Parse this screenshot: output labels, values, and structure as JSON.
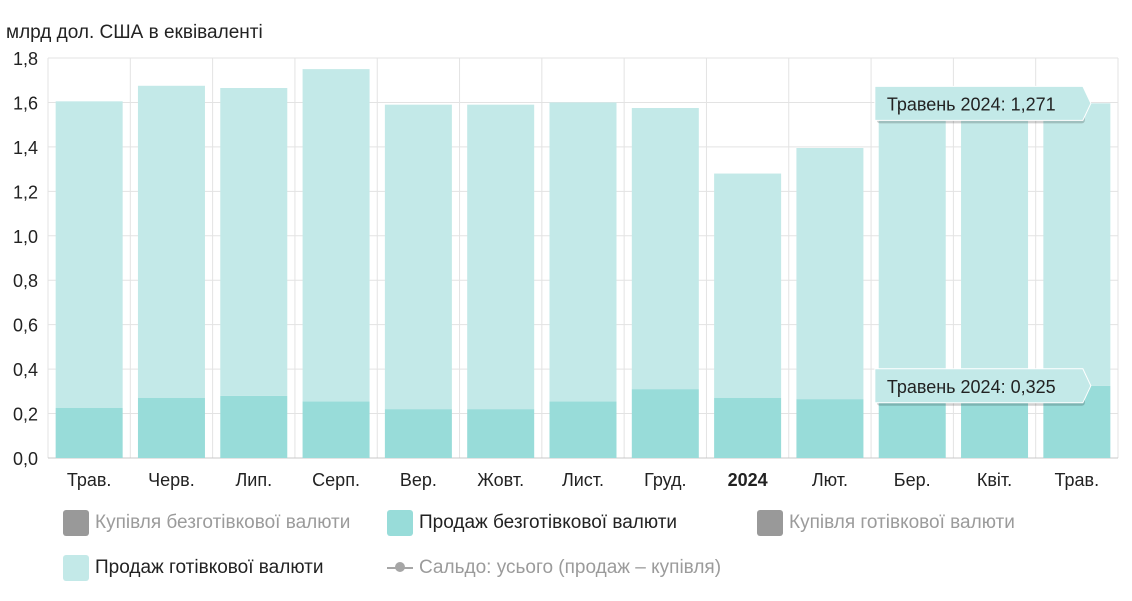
{
  "chart_data": {
    "type": "bar",
    "stacked": true,
    "ylabel": "млрд дол. США в еквіваленті",
    "ylim": [
      0,
      1.8
    ],
    "yticks": [
      "0,0",
      "0,2",
      "0,4",
      "0,6",
      "0,8",
      "1,0",
      "1,2",
      "1,4",
      "1,6",
      "1,8"
    ],
    "grid": true,
    "categories": [
      "Трав.",
      "Черв.",
      "Лип.",
      "Серп.",
      "Вер.",
      "Жовт.",
      "Лист.",
      "Груд.",
      "2024",
      "Лют.",
      "Бер.",
      "Квіт.",
      "Трав."
    ],
    "bold_categories": [
      "2024"
    ],
    "series": [
      {
        "name": "Продаж безготівкової валюти",
        "color": "#98dcd9",
        "values": [
          0.225,
          0.27,
          0.28,
          0.255,
          0.22,
          0.22,
          0.255,
          0.31,
          0.27,
          0.265,
          0.27,
          0.285,
          0.325
        ]
      },
      {
        "name": "Продаж готівкової валюти",
        "color": "#c3e9e8",
        "values": [
          1.38,
          1.405,
          1.385,
          1.495,
          1.37,
          1.37,
          1.345,
          1.265,
          1.01,
          1.13,
          1.3,
          1.305,
          1.271
        ]
      }
    ],
    "tooltips": [
      {
        "text": "Травень 2024: 1,271",
        "category_index": 12,
        "series_index": 1
      },
      {
        "text": "Травень 2024: 0,325",
        "category_index": 12,
        "series_index": 0
      }
    ],
    "legend_position": "bottom"
  },
  "legend": [
    {
      "label": "Купівля безготівкової валюти",
      "color": "#999999",
      "kind": "box",
      "active": false
    },
    {
      "label": "Продаж безготівкової валюти",
      "color": "#98dcd9",
      "kind": "box",
      "active": true
    },
    {
      "label": "Купівля готівкової валюти",
      "color": "#999999",
      "kind": "box",
      "active": false
    },
    {
      "label": "Продаж готівкової валюти",
      "color": "#c3e9e8",
      "kind": "box",
      "active": true
    },
    {
      "label": "Сальдо: усього (продаж – купівля)",
      "color": "#a6a6a6",
      "kind": "line",
      "active": false
    }
  ]
}
